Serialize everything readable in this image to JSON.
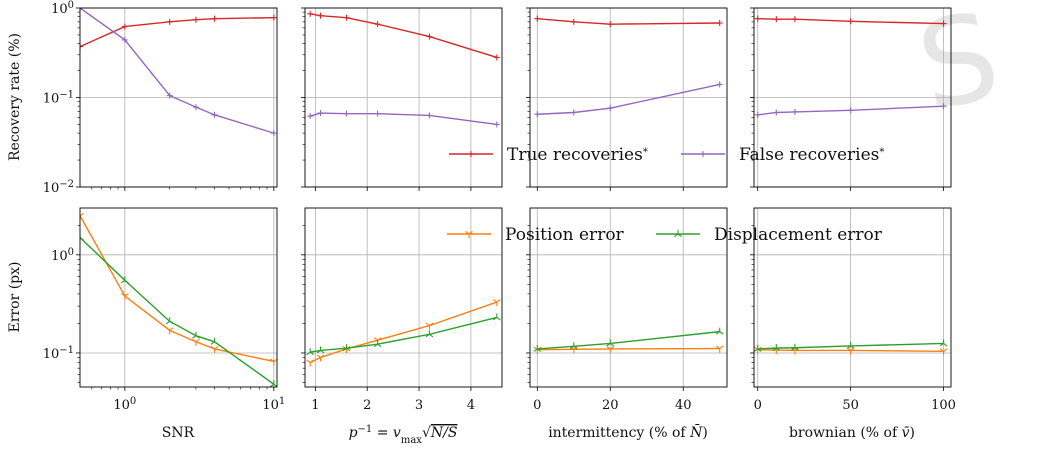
{
  "chart_data": {
    "type": "line",
    "legends": {
      "top": [
        {
          "label": "True recoveries*",
          "color": "#d62728",
          "marker": "plus"
        },
        {
          "label": "False recoveries*",
          "color": "#9467bd",
          "marker": "plus"
        }
      ],
      "bottom": [
        {
          "label": "Position error",
          "color": "#ff7f0e",
          "marker": "tri_down"
        },
        {
          "label": "Displacement error",
          "color": "#2ca02c",
          "marker": "tri_up"
        }
      ]
    },
    "rows": [
      {
        "ylabel": "Recovery rate (%)",
        "yscale": "log",
        "ylim": [
          0.01,
          1
        ],
        "yticks": [
          {
            "v": 1,
            "label": "10^0"
          },
          {
            "v": 0.1,
            "label": "10^-1"
          },
          {
            "v": 0.01,
            "label": "10^-2"
          }
        ]
      },
      {
        "ylabel": "Error (px)",
        "yscale": "log",
        "ylim": [
          0.045,
          3
        ],
        "yticks": [
          {
            "v": 1,
            "label": "10^0"
          },
          {
            "v": 0.1,
            "label": "10^-1"
          }
        ]
      }
    ],
    "columns": [
      {
        "xlabel": "SNR",
        "xscale": "log",
        "xlim": [
          0.5,
          10.5
        ],
        "xticks": [
          {
            "v": 1,
            "label": "10^0"
          },
          {
            "v": 10,
            "label": "10^1"
          }
        ]
      },
      {
        "xlabel": "p^-1 = v_max √(N/S)",
        "xscale": "linear",
        "xlim": [
          0.8,
          4.6
        ],
        "xticks": [
          {
            "v": 1,
            "label": "1"
          },
          {
            "v": 2,
            "label": "2"
          },
          {
            "v": 3,
            "label": "3"
          },
          {
            "v": 4,
            "label": "4"
          }
        ]
      },
      {
        "xlabel": "intermittency (% of N̄)",
        "xscale": "linear",
        "xlim": [
          -2,
          52
        ],
        "xticks": [
          {
            "v": 0,
            "label": "0"
          },
          {
            "v": 20,
            "label": "20"
          },
          {
            "v": 40,
            "label": "40"
          }
        ]
      },
      {
        "xlabel": "brownian (% of v̄)",
        "xscale": "linear",
        "xlim": [
          -2,
          104
        ],
        "xticks": [
          {
            "v": 0,
            "label": "0"
          },
          {
            "v": 50,
            "label": "50"
          },
          {
            "v": 100,
            "label": "100"
          }
        ]
      }
    ],
    "panels": [
      {
        "row": 0,
        "col": 0,
        "series": [
          {
            "name": "True recoveries*",
            "x": [
              0.5,
              1,
              2,
              3,
              4,
              10
            ],
            "y": [
              0.37,
              0.62,
              0.7,
              0.74,
              0.76,
              0.78
            ]
          },
          {
            "name": "False recoveries*",
            "x": [
              0.5,
              1,
              2,
              3,
              4,
              10
            ],
            "y": [
              1.0,
              0.44,
              0.105,
              0.078,
              0.064,
              0.04
            ]
          }
        ]
      },
      {
        "row": 0,
        "col": 1,
        "series": [
          {
            "name": "True recoveries*",
            "x": [
              0.9,
              1.1,
              1.6,
              2.2,
              3.2,
              4.5
            ],
            "y": [
              0.86,
              0.82,
              0.78,
              0.66,
              0.48,
              0.28
            ]
          },
          {
            "name": "False recoveries*",
            "x": [
              0.9,
              1.1,
              1.6,
              2.2,
              3.2,
              4.5
            ],
            "y": [
              0.062,
              0.067,
              0.066,
              0.066,
              0.063,
              0.05
            ]
          }
        ]
      },
      {
        "row": 0,
        "col": 2,
        "series": [
          {
            "name": "True recoveries*",
            "x": [
              0,
              10,
              20,
              50
            ],
            "y": [
              0.76,
              0.7,
              0.66,
              0.68
            ]
          },
          {
            "name": "False recoveries*",
            "x": [
              0,
              10,
              20,
              50
            ],
            "y": [
              0.065,
              0.068,
              0.076,
              0.14
            ]
          }
        ]
      },
      {
        "row": 0,
        "col": 3,
        "series": [
          {
            "name": "True recoveries*",
            "x": [
              0,
              10,
              20,
              50,
              100
            ],
            "y": [
              0.76,
              0.75,
              0.75,
              0.71,
              0.67
            ]
          },
          {
            "name": "False recoveries*",
            "x": [
              0,
              10,
              20,
              50,
              100
            ],
            "y": [
              0.064,
              0.068,
              0.069,
              0.072,
              0.08
            ]
          }
        ]
      },
      {
        "row": 1,
        "col": 0,
        "series": [
          {
            "name": "Position error",
            "x": [
              0.5,
              1,
              2,
              3,
              4,
              10
            ],
            "y": [
              2.5,
              0.38,
              0.17,
              0.13,
              0.11,
              0.082
            ]
          },
          {
            "name": "Displacement error",
            "x": [
              0.5,
              1,
              2,
              3,
              4,
              10
            ],
            "y": [
              1.5,
              0.55,
              0.21,
              0.15,
              0.13,
              0.048
            ]
          }
        ]
      },
      {
        "row": 1,
        "col": 1,
        "series": [
          {
            "name": "Position error",
            "x": [
              0.9,
              1.1,
              1.6,
              2.2,
              3.2,
              4.5
            ],
            "y": [
              0.08,
              0.09,
              0.11,
              0.135,
              0.19,
              0.33
            ]
          },
          {
            "name": "Displacement error",
            "x": [
              0.9,
              1.1,
              1.6,
              2.2,
              3.2,
              4.5
            ],
            "y": [
              0.102,
              0.106,
              0.112,
              0.123,
              0.155,
              0.23
            ]
          }
        ]
      },
      {
        "row": 1,
        "col": 2,
        "series": [
          {
            "name": "Position error",
            "x": [
              0,
              10,
              20,
              50
            ],
            "y": [
              0.108,
              0.109,
              0.11,
              0.111
            ]
          },
          {
            "name": "Displacement error",
            "x": [
              0,
              10,
              20,
              50
            ],
            "y": [
              0.11,
              0.117,
              0.125,
              0.165
            ]
          }
        ]
      },
      {
        "row": 1,
        "col": 3,
        "series": [
          {
            "name": "Position error",
            "x": [
              0,
              10,
              20,
              50,
              100
            ],
            "y": [
              0.108,
              0.107,
              0.106,
              0.106,
              0.104
            ]
          },
          {
            "name": "Displacement error",
            "x": [
              0,
              10,
              20,
              50,
              100
            ],
            "y": [
              0.11,
              0.112,
              0.113,
              0.118,
              0.125
            ]
          }
        ]
      }
    ]
  }
}
